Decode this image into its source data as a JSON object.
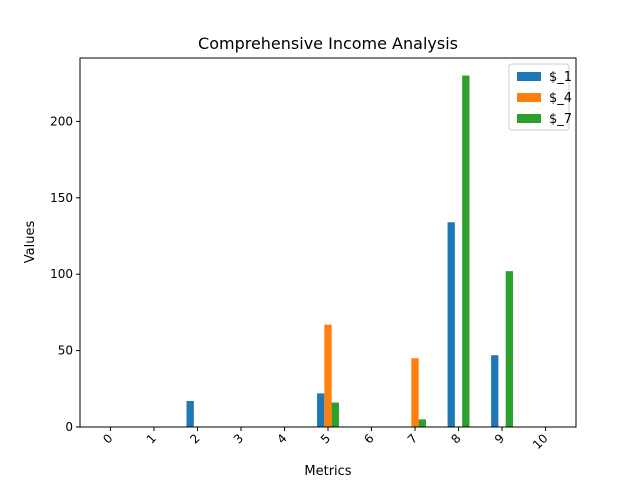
{
  "chart_data": {
    "type": "bar",
    "title": "Comprehensive Income Analysis",
    "xlabel": "Metrics",
    "ylabel": "Values",
    "categories": [
      "0",
      "1",
      "2",
      "3",
      "4",
      "5",
      "6",
      "7",
      "8",
      "9",
      "10"
    ],
    "ylim": [
      0,
      241.5
    ],
    "yticks": [
      0,
      50,
      100,
      150,
      200
    ],
    "legend_position": "top-right",
    "series": [
      {
        "name": "$_1",
        "color": "#1f77b4",
        "values": [
          0,
          0,
          17,
          0,
          0,
          22,
          0,
          0,
          134,
          47,
          0
        ]
      },
      {
        "name": "$_4",
        "color": "#ff7f0e",
        "values": [
          0,
          0,
          0,
          0,
          0,
          67,
          0,
          45,
          0,
          0,
          0
        ]
      },
      {
        "name": "$_7",
        "color": "#2ca02c",
        "values": [
          0,
          0,
          0,
          0,
          0,
          16,
          0,
          5,
          230,
          102,
          0
        ]
      }
    ]
  }
}
